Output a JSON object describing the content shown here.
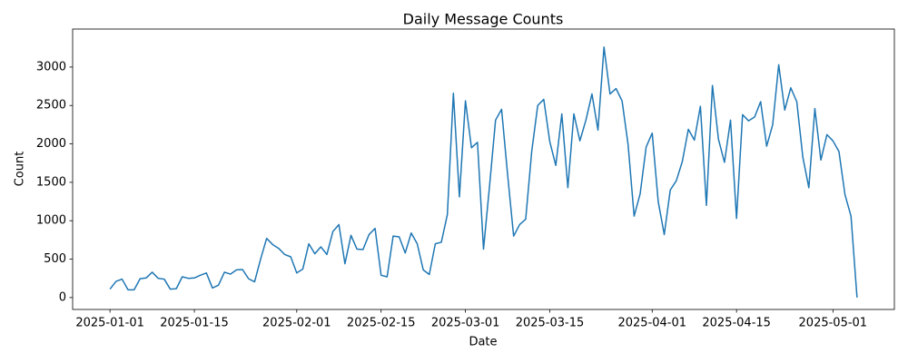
{
  "chart_data": {
    "type": "line",
    "title": "Daily Message Counts",
    "x_label": "Date",
    "y_label": "Count",
    "color": "#1f77b4",
    "x": [
      "2025-01-01",
      "2025-01-02",
      "2025-01-03",
      "2025-01-04",
      "2025-01-05",
      "2025-01-06",
      "2025-01-07",
      "2025-01-08",
      "2025-01-09",
      "2025-01-10",
      "2025-01-11",
      "2025-01-12",
      "2025-01-13",
      "2025-01-14",
      "2025-01-15",
      "2025-01-16",
      "2025-01-17",
      "2025-01-18",
      "2025-01-19",
      "2025-01-20",
      "2025-01-21",
      "2025-01-22",
      "2025-01-23",
      "2025-01-24",
      "2025-01-25",
      "2025-01-26",
      "2025-01-27",
      "2025-01-28",
      "2025-01-29",
      "2025-01-30",
      "2025-01-31",
      "2025-02-01",
      "2025-02-02",
      "2025-02-03",
      "2025-02-04",
      "2025-02-05",
      "2025-02-06",
      "2025-02-07",
      "2025-02-08",
      "2025-02-09",
      "2025-02-10",
      "2025-02-11",
      "2025-02-12",
      "2025-02-13",
      "2025-02-14",
      "2025-02-15",
      "2025-02-16",
      "2025-02-17",
      "2025-02-18",
      "2025-02-19",
      "2025-02-20",
      "2025-02-21",
      "2025-02-22",
      "2025-02-23",
      "2025-02-24",
      "2025-02-25",
      "2025-02-26",
      "2025-02-27",
      "2025-02-28",
      "2025-03-01",
      "2025-03-02",
      "2025-03-03",
      "2025-03-04",
      "2025-03-05",
      "2025-03-06",
      "2025-03-07",
      "2025-03-08",
      "2025-03-09",
      "2025-03-10",
      "2025-03-11",
      "2025-03-12",
      "2025-03-13",
      "2025-03-14",
      "2025-03-15",
      "2025-03-16",
      "2025-03-17",
      "2025-03-18",
      "2025-03-19",
      "2025-03-20",
      "2025-03-21",
      "2025-03-22",
      "2025-03-23",
      "2025-03-24",
      "2025-03-25",
      "2025-03-26",
      "2025-03-27",
      "2025-03-28",
      "2025-03-29",
      "2025-03-30",
      "2025-03-31",
      "2025-04-01",
      "2025-04-02",
      "2025-04-03",
      "2025-04-04",
      "2025-04-05",
      "2025-04-06",
      "2025-04-07",
      "2025-04-08",
      "2025-04-09",
      "2025-04-10",
      "2025-04-11",
      "2025-04-12",
      "2025-04-13",
      "2025-04-14",
      "2025-04-15",
      "2025-04-16",
      "2025-04-17",
      "2025-04-18",
      "2025-04-19",
      "2025-04-20",
      "2025-04-21",
      "2025-04-22",
      "2025-04-23",
      "2025-04-24",
      "2025-04-25",
      "2025-04-26",
      "2025-04-27",
      "2025-04-28",
      "2025-04-29",
      "2025-04-30",
      "2025-05-01",
      "2025-05-02",
      "2025-05-03",
      "2025-05-04",
      "2025-05-05"
    ],
    "values": [
      110,
      210,
      240,
      100,
      100,
      245,
      255,
      330,
      250,
      240,
      110,
      115,
      270,
      250,
      255,
      290,
      320,
      125,
      160,
      330,
      305,
      360,
      365,
      245,
      205,
      500,
      770,
      690,
      640,
      560,
      530,
      320,
      370,
      700,
      570,
      660,
      560,
      860,
      950,
      440,
      810,
      630,
      625,
      820,
      900,
      290,
      270,
      800,
      790,
      580,
      840,
      700,
      360,
      300,
      700,
      720,
      1080,
      2660,
      1310,
      2560,
      1950,
      2020,
      630,
      1450,
      2310,
      2450,
      1600,
      800,
      950,
      1020,
      1900,
      2500,
      2580,
      2030,
      1720,
      2390,
      1430,
      2390,
      2040,
      2310,
      2650,
      2180,
      3260,
      2650,
      2720,
      2560,
      1990,
      1060,
      1350,
      1960,
      2140,
      1250,
      820,
      1400,
      1520,
      1770,
      2190,
      2050,
      2490,
      1200,
      2760,
      2060,
      1760,
      2310,
      1030,
      2380,
      2300,
      2350,
      2550,
      1970,
      2250,
      3030,
      2440,
      2730,
      2550,
      1830,
      1430,
      2460,
      1790,
      2120,
      2040,
      1900,
      1340,
      1060,
      0
    ],
    "xlim": [
      "2024-12-25T19:12Z",
      "2025-05-11T04:48Z"
    ],
    "xticks": [
      "2025-01-01",
      "2025-01-15",
      "2025-02-01",
      "2025-02-15",
      "2025-03-01",
      "2025-03-15",
      "2025-04-01",
      "2025-04-15",
      "2025-05-01"
    ],
    "ylim": [
      -155,
      3495
    ],
    "yticks": [
      0,
      500,
      1000,
      1500,
      2000,
      2500,
      3000
    ]
  }
}
